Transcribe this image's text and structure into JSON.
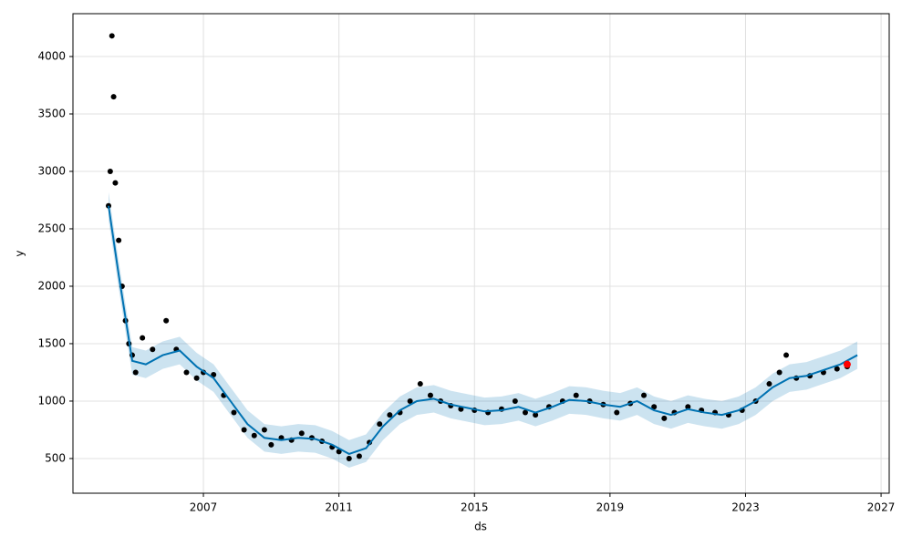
{
  "chart_data": {
    "type": "forecast",
    "xlabel": "ds",
    "ylabel": "y",
    "xlim": [
      2003.15,
      2027.24
    ],
    "xticks": [
      2007,
      2011,
      2015,
      2019,
      2023,
      2027
    ],
    "ylim": [
      198,
      4373
    ],
    "yticks": [
      500,
      1000,
      1500,
      2000,
      2500,
      3000,
      3500,
      4000
    ],
    "grid": true,
    "observed": {
      "color": "#000000",
      "x": [
        2004.2,
        2004.25,
        2004.3,
        2004.35,
        2004.4,
        2004.5,
        2004.6,
        2004.7,
        2004.8,
        2004.9,
        2005.0,
        2005.2,
        2005.5,
        2005.9,
        2006.2,
        2006.5,
        2006.8,
        2007.0,
        2007.3,
        2007.6,
        2007.9,
        2008.2,
        2008.5,
        2008.8,
        2009.0,
        2009.3,
        2009.6,
        2009.9,
        2010.2,
        2010.5,
        2010.8,
        2011.0,
        2011.3,
        2011.6,
        2011.9,
        2012.2,
        2012.5,
        2012.8,
        2013.1,
        2013.4,
        2013.7,
        2014.0,
        2014.3,
        2014.6,
        2015.0,
        2015.4,
        2015.8,
        2016.2,
        2016.5,
        2016.8,
        2017.2,
        2017.6,
        2018.0,
        2018.4,
        2018.8,
        2019.2,
        2019.6,
        2020.0,
        2020.3,
        2020.6,
        2020.9,
        2021.3,
        2021.7,
        2022.1,
        2022.5,
        2022.9,
        2023.3,
        2023.7,
        2024.0,
        2024.2,
        2024.5,
        2024.9,
        2025.3,
        2025.7,
        2026.0
      ],
      "values": [
        2700,
        3000,
        4180,
        3650,
        2900,
        2400,
        2000,
        1700,
        1500,
        1400,
        1250,
        1550,
        1450,
        1700,
        1450,
        1250,
        1200,
        1250,
        1230,
        1050,
        900,
        750,
        700,
        750,
        620,
        680,
        660,
        720,
        680,
        650,
        600,
        560,
        500,
        520,
        640,
        800,
        880,
        900,
        1000,
        1150,
        1050,
        1000,
        960,
        930,
        920,
        900,
        930,
        1000,
        900,
        880,
        950,
        1000,
        1050,
        1000,
        970,
        900,
        980,
        1050,
        950,
        850,
        900,
        950,
        920,
        900,
        880,
        920,
        1000,
        1150,
        1250,
        1400,
        1200,
        1220,
        1250,
        1280,
        1300
      ]
    },
    "forecast": {
      "color": "#0072b2",
      "band_color": "#0072b2",
      "x": [
        2004.2,
        2004.5,
        2004.9,
        2005.3,
        2005.8,
        2006.3,
        2006.8,
        2007.3,
        2007.8,
        2008.3,
        2008.8,
        2009.3,
        2009.8,
        2010.3,
        2010.8,
        2011.3,
        2011.8,
        2012.3,
        2012.8,
        2013.3,
        2013.8,
        2014.3,
        2014.8,
        2015.3,
        2015.8,
        2016.3,
        2016.8,
        2017.3,
        2017.8,
        2018.3,
        2018.8,
        2019.3,
        2019.8,
        2020.3,
        2020.8,
        2021.3,
        2021.8,
        2022.3,
        2022.8,
        2023.3,
        2023.8,
        2024.3,
        2024.8,
        2025.3,
        2025.8,
        2026.3
      ],
      "values": [
        2700,
        2100,
        1350,
        1320,
        1400,
        1440,
        1300,
        1200,
        1000,
        800,
        680,
        660,
        680,
        670,
        620,
        540,
        590,
        780,
        920,
        1000,
        1020,
        970,
        940,
        910,
        920,
        950,
        900,
        950,
        1010,
        1000,
        970,
        950,
        1000,
        920,
        880,
        930,
        900,
        880,
        920,
        1000,
        1120,
        1200,
        1220,
        1270,
        1320,
        1400
      ],
      "lower": [
        2580,
        1980,
        1230,
        1200,
        1280,
        1320,
        1180,
        1080,
        880,
        680,
        560,
        540,
        560,
        550,
        500,
        420,
        470,
        660,
        800,
        880,
        900,
        850,
        820,
        790,
        800,
        830,
        780,
        830,
        890,
        880,
        850,
        830,
        880,
        800,
        760,
        810,
        780,
        760,
        800,
        880,
        1000,
        1080,
        1100,
        1150,
        1200,
        1280
      ],
      "upper": [
        2820,
        2220,
        1470,
        1440,
        1520,
        1560,
        1420,
        1320,
        1120,
        920,
        800,
        780,
        800,
        790,
        740,
        660,
        710,
        900,
        1040,
        1120,
        1140,
        1090,
        1060,
        1030,
        1040,
        1070,
        1020,
        1070,
        1130,
        1120,
        1090,
        1070,
        1120,
        1040,
        1000,
        1050,
        1020,
        1000,
        1040,
        1120,
        1240,
        1320,
        1340,
        1390,
        1440,
        1520
      ]
    },
    "highlight": {
      "color": "#ff0000",
      "x": 2026.0,
      "y": 1320
    }
  }
}
